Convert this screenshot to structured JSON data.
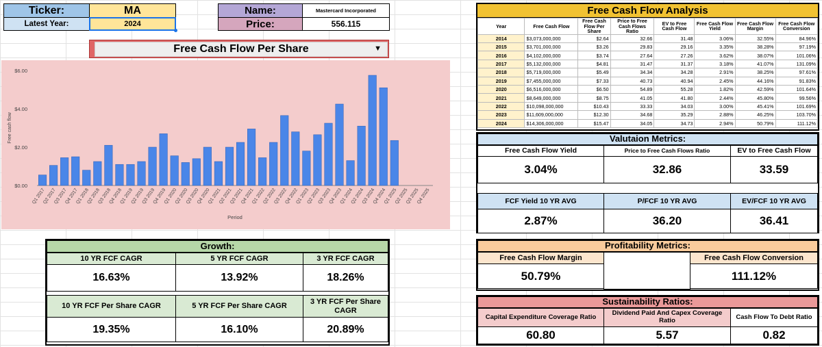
{
  "header": {
    "ticker_label": "Ticker:",
    "ticker_value": "MA",
    "latest_year_label": "Latest Year:",
    "latest_year_value": "2024",
    "name_label": "Name:",
    "name_value": "Mastercard Incorporated",
    "price_label": "Price:",
    "price_value": "556.115"
  },
  "chart_selector": {
    "label": "Free Cash Flow Per Share"
  },
  "chart_data": {
    "type": "bar",
    "xlabel": "Period",
    "ylabel": "Free cash flow",
    "ylim": [
      0,
      6
    ],
    "yticks": [
      "$0.00",
      "$2.00",
      "$4.00",
      "$6.00"
    ],
    "grid": false,
    "color": "#4a86e8",
    "categories": [
      "Q1 2017",
      "Q2 2017",
      "Q3 2017",
      "Q4 2017",
      "Q1 2018",
      "Q2 2018",
      "Q3 2018",
      "Q4 2018",
      "Q1 2019",
      "Q2 2019",
      "Q3 2019",
      "Q4 2019",
      "Q1 2020",
      "Q2 2020",
      "Q3 2020",
      "Q4 2020",
      "Q1 2021",
      "Q2 2021",
      "Q3 2021",
      "Q4 2021",
      "Q1 2022",
      "Q2 2022",
      "Q3 2022",
      "Q4 2022",
      "Q1 2023",
      "Q2 2023",
      "Q3 2023",
      "Q4 2023",
      "Q1 2024",
      "Q2 2024",
      "Q3 2024",
      "Q4 2024",
      "Q1 2025",
      "Q2 2025",
      "Q3 2025",
      "Q4 2025"
    ],
    "values": [
      0.55,
      1.05,
      1.45,
      1.5,
      0.8,
      1.25,
      2.1,
      1.1,
      1.1,
      1.25,
      2.0,
      2.7,
      1.55,
      1.2,
      1.4,
      2.0,
      1.25,
      2.0,
      2.25,
      2.95,
      1.45,
      2.25,
      3.65,
      2.8,
      1.8,
      2.65,
      3.25,
      4.25,
      1.3,
      3.1,
      5.75,
      5.1,
      2.35,
      0,
      0,
      0
    ]
  },
  "fcf_analysis": {
    "title": "Free Cash Flow Analysis",
    "columns": [
      "Year",
      "Free Cash Flow",
      "Free Cash Flow Per Share",
      "Price to Free Cash Flows Ratio",
      "EV to Free Cash Flow",
      "Free Cash Flow Yield",
      "Free Cash Flow Margin",
      "Free Cash Flow Conversion"
    ],
    "rows": [
      [
        "2014",
        "$3,073,000,000",
        "$2.64",
        "32.66",
        "31.48",
        "3.06%",
        "32.55%",
        "84.96%"
      ],
      [
        "2015",
        "$3,701,000,000",
        "$3.26",
        "29.83",
        "29.16",
        "3.35%",
        "38.28%",
        "97.19%"
      ],
      [
        "2016",
        "$4,102,000,000",
        "$3.74",
        "27.64",
        "27.26",
        "3.62%",
        "38.07%",
        "101.06%"
      ],
      [
        "2017",
        "$5,132,000,000",
        "$4.81",
        "31.47",
        "31.37",
        "3.18%",
        "41.07%",
        "131.09%"
      ],
      [
        "2018",
        "$5,719,000,000",
        "$5.49",
        "34.34",
        "34.28",
        "2.91%",
        "38.25%",
        "97.61%"
      ],
      [
        "2019",
        "$7,455,000,000",
        "$7.33",
        "40.73",
        "40.94",
        "2.45%",
        "44.16%",
        "91.83%"
      ],
      [
        "2020",
        "$6,516,000,000",
        "$6.50",
        "54.89",
        "55.28",
        "1.82%",
        "42.59%",
        "101.64%"
      ],
      [
        "2021",
        "$8,649,000,000",
        "$8.75",
        "41.05",
        "41.80",
        "2.44%",
        "45.80%",
        "99.56%"
      ],
      [
        "2022",
        "$10,098,000,000",
        "$10.43",
        "33.33",
        "34.03",
        "3.00%",
        "45.41%",
        "101.69%"
      ],
      [
        "2023",
        "$11,609,000,000",
        "$12.30",
        "34.68",
        "35.29",
        "2.88%",
        "46.25%",
        "103.70%"
      ],
      [
        "2024",
        "$14,306,000,000",
        "$15.47",
        "34.05",
        "34.73",
        "2.94%",
        "50.79%",
        "111.12%"
      ]
    ]
  },
  "valuation": {
    "title": "Valutaion Metrics:",
    "items": [
      {
        "label": "Free Cash Flow Yield",
        "value": "3.04%"
      },
      {
        "label": "Price to Free Cash Flows Ratio",
        "value": "32.86"
      },
      {
        "label": "EV to Free Cash Flow",
        "value": "33.59"
      },
      {
        "label": "FCF Yield 10 YR AVG",
        "value": "2.87%"
      },
      {
        "label": "P/FCF 10 YR AVG",
        "value": "36.20"
      },
      {
        "label": "EV/FCF 10 YR AVG",
        "value": "36.41"
      }
    ]
  },
  "profitability": {
    "title": "Profitability Metrics:",
    "items": [
      {
        "label": "Free Cash Flow Margin",
        "value": "50.79%"
      },
      {
        "label": "Free Cash Flow Conversion",
        "value": "111.12%"
      }
    ]
  },
  "sustainability": {
    "title": "Sustainability Ratios:",
    "items": [
      {
        "label": "Capital Expenditure Coverage Ratio",
        "value": "60.80"
      },
      {
        "label": "Dividend Paid And Capex Coverage Ratio",
        "value": "5.57"
      },
      {
        "label": "Cash Flow To Debt Ratio",
        "value": "0.82"
      }
    ]
  },
  "growth": {
    "title": "Growth:",
    "items": [
      {
        "label": "10 YR FCF CAGR",
        "value": "16.63%"
      },
      {
        "label": "5 YR FCF CAGR",
        "value": "13.92%"
      },
      {
        "label": "3 YR FCF CAGR",
        "value": "18.26%"
      },
      {
        "label": "10 YR FCF Per Share CAGR",
        "value": "19.35%"
      },
      {
        "label": "5 YR FCF Per Share CAGR",
        "value": "16.10%"
      },
      {
        "label": "3 YR FCF Per Share CAGR",
        "value": "20.89%"
      }
    ]
  },
  "colors": {
    "ticker_blue": "#9fc5e8",
    "latest_year_blue": "#cfe2f3",
    "yellow": "#ffe599",
    "name_purple": "#b4a7d6",
    "price_pink": "#d5a6bd",
    "chart_bg": "#f4cccc",
    "title_gold": "#f1c232",
    "valuation_blue": "#cfe2f3",
    "profit_orange": "#f9cb9c",
    "sustain_red": "#ea9999",
    "sustain_light": "#f4cccc",
    "growth_green": "#b6d7a8",
    "growth_light": "#d9ead3"
  }
}
